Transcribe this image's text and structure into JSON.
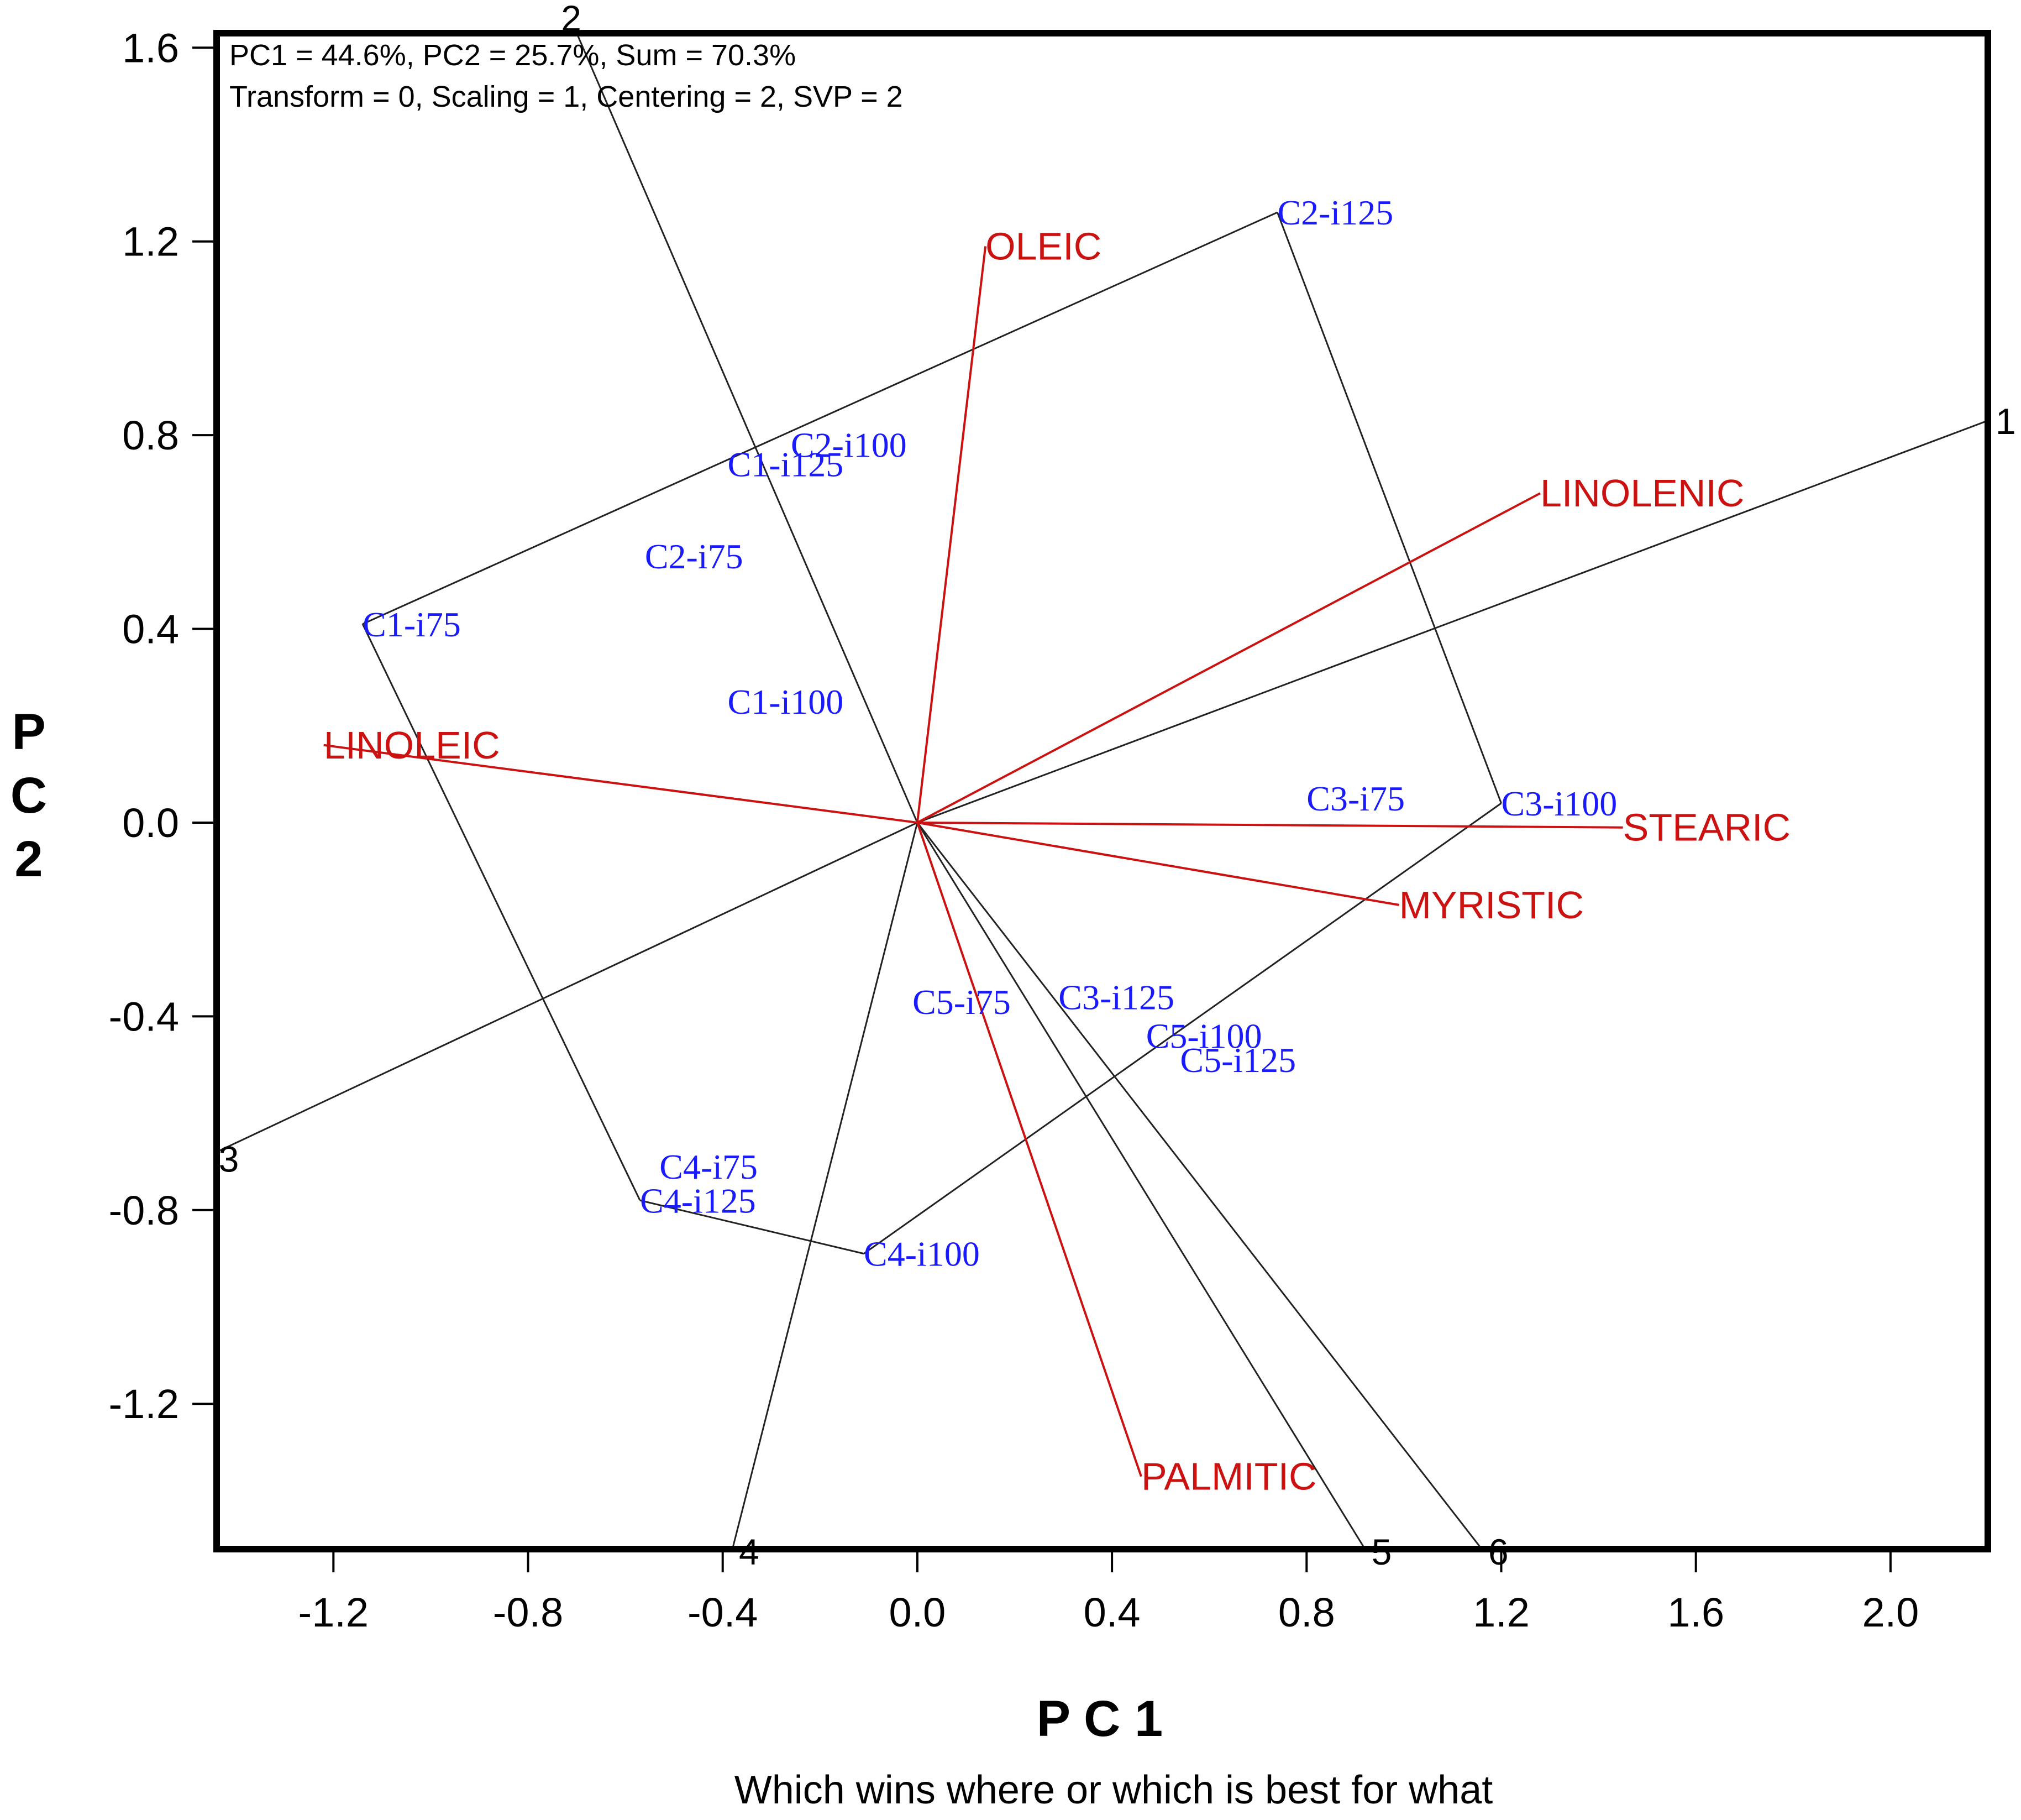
{
  "chart_data": {
    "type": "scatter",
    "subtype": "gge-biplot-which-won-where",
    "info_line_1": "PC1 = 44.6%, PC2 = 25.7%, Sum = 70.3%",
    "info_line_2": "Transform = 0, Scaling = 1, Centering = 2, SVP = 2",
    "xlabel": "P C 1",
    "ylabel": [
      "P",
      "C",
      "2"
    ],
    "caption": "Which wins where or which is best for what",
    "xlim": [
      -1.44,
      2.2
    ],
    "ylim": [
      -1.5,
      1.63
    ],
    "xticks": [
      -1.2,
      -0.8,
      -0.4,
      0.0,
      0.4,
      0.8,
      1.2,
      1.6,
      2.0
    ],
    "xtick_labels": [
      "-1.2",
      "-0.8",
      "-0.4",
      "0.0",
      "0.4",
      "0.8",
      "1.2",
      "1.6",
      "2.0"
    ],
    "yticks": [
      1.6,
      1.2,
      0.8,
      0.4,
      0.0,
      -0.4,
      -0.8,
      -1.2
    ],
    "ytick_labels": [
      "1.6",
      "1.2",
      "0.8",
      "0.4",
      "0.0",
      "-0.4",
      "-0.8",
      "-1.2"
    ],
    "colors": {
      "genotype": "#1a1aff",
      "trait": "#cc1111",
      "polygon": "#222222",
      "frame": "#000000"
    },
    "genotypes": [
      {
        "name": "C1-i75",
        "x": -1.14,
        "y": 0.41
      },
      {
        "name": "C2-i125",
        "x": 0.74,
        "y": 1.26
      },
      {
        "name": "C3-i100",
        "x": 1.2,
        "y": 0.04
      },
      {
        "name": "C4-i100",
        "x": -0.11,
        "y": -0.89
      },
      {
        "name": "C4-i125",
        "x": -0.57,
        "y": -0.78
      },
      {
        "name": "C2-i100",
        "x": -0.26,
        "y": 0.78
      },
      {
        "name": "C1-i125",
        "x": -0.39,
        "y": 0.74
      },
      {
        "name": "C2-i75",
        "x": -0.56,
        "y": 0.55
      },
      {
        "name": "C1-i100",
        "x": -0.39,
        "y": 0.25
      },
      {
        "name": "C3-i75",
        "x": 0.8,
        "y": 0.05
      },
      {
        "name": "C3-i125",
        "x": 0.29,
        "y": -0.36
      },
      {
        "name": "C5-i75",
        "x": -0.01,
        "y": -0.37
      },
      {
        "name": "C5-i100",
        "x": 0.47,
        "y": -0.44
      },
      {
        "name": "C5-i125",
        "x": 0.54,
        "y": -0.49
      },
      {
        "name": "C4-i75",
        "x": -0.53,
        "y": -0.71
      }
    ],
    "traits": [
      {
        "name": "OLEIC",
        "x": 0.14,
        "y": 1.19
      },
      {
        "name": "LINOLENIC",
        "x": 1.28,
        "y": 0.68
      },
      {
        "name": "LINOLEIC",
        "x": -1.22,
        "y": 0.16
      },
      {
        "name": "STEARIC",
        "x": 1.45,
        "y": -0.01
      },
      {
        "name": "MYRISTIC",
        "x": 0.99,
        "y": -0.17
      },
      {
        "name": "PALMITIC",
        "x": 0.46,
        "y": -1.35
      }
    ],
    "polygon_order": [
      "C1-i75",
      "C2-i125",
      "C3-i100",
      "C4-i100",
      "C4-i125"
    ],
    "sector_rays": [
      {
        "label": "1",
        "x": 2.2,
        "y": 0.83
      },
      {
        "label": "2",
        "x": -0.7,
        "y": 1.63
      },
      {
        "label": "3",
        "x": -1.44,
        "y": -0.68
      },
      {
        "label": "4",
        "x": -0.38,
        "y": -1.5
      },
      {
        "label": "5",
        "x": 0.92,
        "y": -1.5
      },
      {
        "label": "6",
        "x": 1.16,
        "y": -1.5
      }
    ]
  }
}
